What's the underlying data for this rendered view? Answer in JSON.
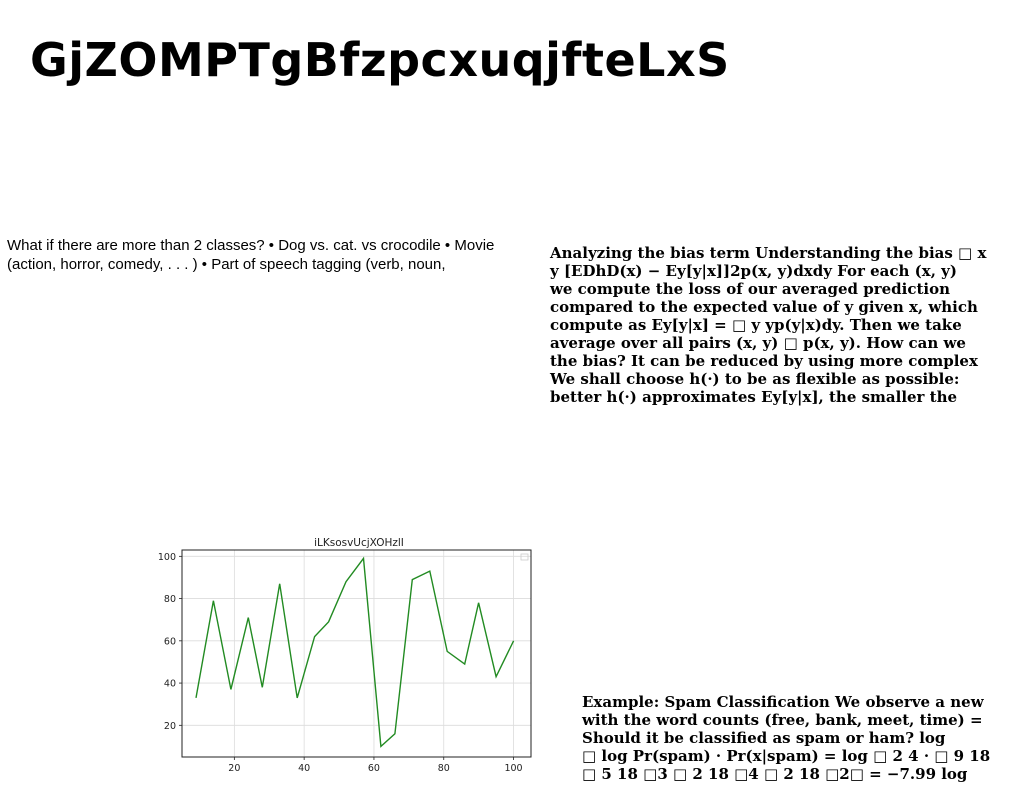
{
  "page": {
    "title": "GjZOMPTgBfzpcxuqjfteLxS"
  },
  "blocks": {
    "classes_text": "What if there are more than 2 classes? • Dog vs. cat. vs crocodile • Movie (action, horror, comedy, . . . ) • Part of speech tagging (verb, noun,",
    "bias_lines": [
      "Analyzing the bias term Understanding the bias □ x",
      "y [EDhD(x) − Ey[y|x]]2p(x, y)dxdy For each (x, y)",
      "we compute the loss of our averaged prediction",
      "compared to the expected value of y given x, which",
      "compute as Ey[y|x] = □ y yp(y|x)dy. Then we take",
      "average over all pairs (x, y) □ p(x, y). How can we",
      "the bias? It can be reduced by using more complex",
      "We shall choose h(·) to be as flexible as possible:",
      "better h(·) approximates Ey[y|x], the smaller the"
    ],
    "spam_lines": [
      "Example: Spam Classification We observe a new",
      "with the word counts (free, bank, meet, time) =",
      "Should it be classified as spam or ham? log",
      "□ log Pr(spam) · Pr(x|spam) = log □ 2 4 · □ 9 18",
      "□ 5 18 □3 □ 2 18 □4 □ 2 18 □2□ = −7.99 log"
    ]
  },
  "chart_data": {
    "type": "line",
    "title": "iLKsosvUcjXOHzlI",
    "x": [
      9,
      14,
      19,
      24,
      28,
      33,
      38,
      43,
      47,
      52,
      57,
      62,
      66,
      71,
      76,
      81,
      86,
      90,
      95,
      100
    ],
    "series": [
      {
        "values": [
          33,
          79,
          37,
          71,
          38,
          87,
          33,
          62,
          69,
          88,
          99,
          10,
          16,
          89,
          93,
          55,
          49,
          78,
          43,
          60
        ]
      }
    ],
    "xticks": [
      20,
      40,
      60,
      80,
      100
    ],
    "yticks": [
      20,
      40,
      60,
      80,
      100
    ],
    "xlim": [
      5,
      105
    ],
    "ylim": [
      5,
      103
    ],
    "grid": true,
    "line_color": "#228B22"
  }
}
